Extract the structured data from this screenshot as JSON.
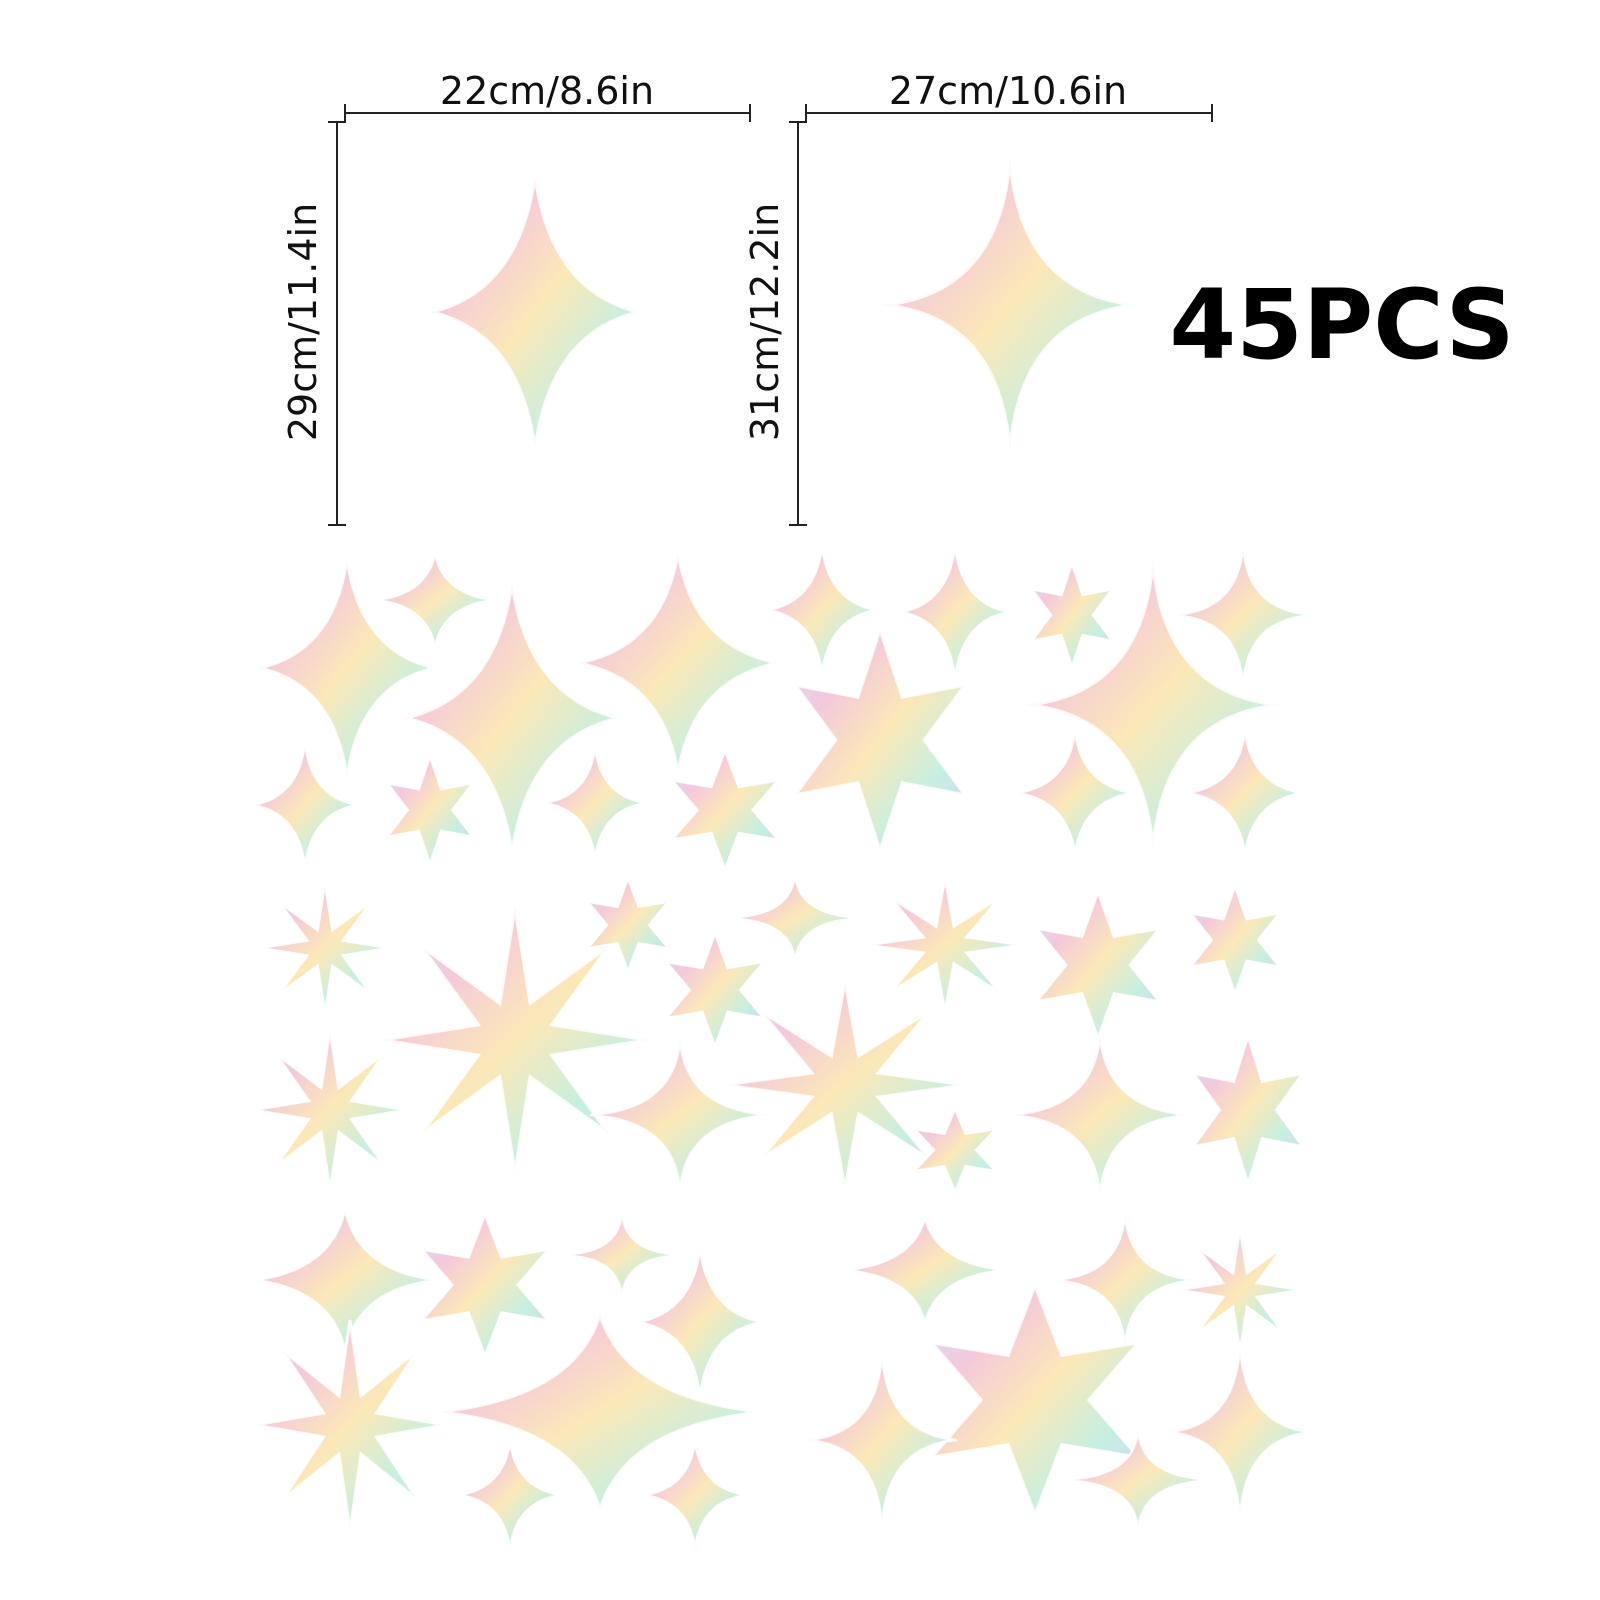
{
  "dimensions": [
    {
      "width": "22cm/8.6in",
      "height": "29cm/11.4in"
    },
    {
      "width": "27cm/10.6in",
      "height": "31cm/12.2in"
    }
  ],
  "count": "45PCS"
}
